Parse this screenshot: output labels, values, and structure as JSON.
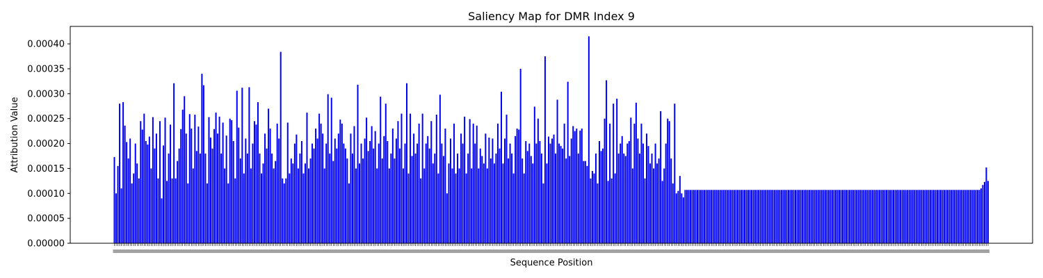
{
  "chart_data": {
    "type": "bar",
    "title": "Saliency Map for DMR Index 9",
    "xlabel": "Sequence Position",
    "ylabel": "Attribution Value",
    "ylim": [
      0,
      0.000435
    ],
    "y_ticks": [
      "0.00000",
      "0.00005",
      "0.00010",
      "0.00015",
      "0.00020",
      "0.00025",
      "0.00030",
      "0.00035",
      "0.00040"
    ],
    "bar_color": "#0000ff",
    "n_positions": 500,
    "x_tick_labels_legible": false,
    "series": [
      {
        "values_variable_region": [
          0.000173,
          0.0001,
          0.000155,
          0.00028,
          0.00011,
          0.000283,
          0.000236,
          0.000203,
          0.00017,
          0.00021,
          0.00012,
          0.00014,
          0.0002,
          0.00016,
          0.00013,
          0.000245,
          0.000228,
          0.00026,
          0.000205,
          0.000198,
          0.000214,
          0.00015,
          0.000253,
          0.00019,
          0.00022,
          0.00013,
          0.000245,
          9e-05,
          0.000196,
          0.000252,
          0.000125,
          0.00018,
          0.000238,
          0.00013,
          0.000321,
          0.00013,
          0.000165,
          0.00019,
          0.000229,
          0.000268,
          0.000295,
          0.00022,
          0.00012,
          0.000259,
          0.00023,
          0.00015,
          0.000258,
          0.000185,
          0.000234,
          0.00018,
          0.00034,
          0.000317,
          0.00018,
          0.00012,
          0.000253,
          0.000212,
          0.00019,
          0.000229,
          0.000262,
          0.00022,
          0.000254,
          0.00018,
          0.000242,
          0.00015,
          0.000216,
          0.00012,
          0.00025,
          0.000247,
          0.000205,
          0.00013,
          0.000306,
          0.000232,
          0.00017,
          0.000312,
          0.00014,
          0.00021,
          0.00018,
          0.000313,
          0.00015,
          0.0002,
          0.000245,
          0.000238,
          0.000283,
          0.00018,
          0.00014,
          0.00016,
          0.00022,
          0.00019,
          0.00027,
          0.00023,
          0.00018,
          0.00015,
          0.000165,
          0.00024,
          0.00021,
          0.000384,
          0.00013,
          0.00012,
          0.00013,
          0.000242,
          0.00014,
          0.00017,
          0.00016,
          0.0002,
          0.000218,
          0.00015,
          0.00018,
          0.000205,
          0.00014,
          0.00016,
          0.000262,
          0.00015,
          0.00017,
          0.0002,
          0.00019,
          0.00023,
          0.00021,
          0.00026,
          0.00024,
          0.00022,
          0.00015,
          0.0002,
          0.000299,
          0.00018,
          0.000292,
          0.000165,
          0.00021,
          0.00019,
          0.00022,
          0.000248,
          0.00024,
          0.0002,
          0.00019,
          0.00017,
          0.00012,
          0.00022,
          0.00018,
          0.000235,
          0.00015,
          0.000318,
          0.00016,
          0.0002,
          0.00017,
          0.00021,
          0.000252,
          0.000185,
          0.000205,
          0.000235,
          0.00019,
          0.000225,
          0.00015,
          0.0002,
          0.000294,
          0.00017,
          0.000215,
          0.00028,
          0.000205,
          0.00015,
          0.00018,
          0.00023,
          0.00017,
          0.00021,
          0.000245,
          0.00019,
          0.00026,
          0.00015,
          0.0002,
          0.000321,
          0.00014,
          0.00026,
          0.000175,
          0.00022,
          0.00018,
          0.0002,
          0.00024,
          0.00013,
          0.00026,
          0.00015,
          0.0002,
          0.000215,
          0.00019,
          0.000245,
          0.00016,
          0.00018,
          0.000258,
          0.00014,
          0.000298,
          0.0002,
          0.000175,
          0.00023,
          0.0001,
          0.00016,
          0.00021,
          0.00015,
          0.00024,
          0.00014,
          0.00018,
          0.00015,
          0.00022,
          0.0002,
          0.000254,
          0.00014,
          0.00018,
          0.000249,
          0.00015,
          0.00024,
          0.0002,
          0.000236,
          0.00015,
          0.00019,
          0.000175,
          0.00016,
          0.00022,
          0.00015,
          0.000212,
          0.00017,
          0.00021,
          0.00016,
          0.00018,
          0.00024,
          0.00019,
          0.000304,
          0.00016,
          0.00021,
          0.000258,
          0.00017,
          0.0002,
          0.00018,
          0.00014,
          0.000215,
          0.00023,
          0.000228,
          0.00035,
          0.00017,
          0.00014,
          0.000205,
          0.000185,
          0.0002,
          0.000175,
          0.00016,
          0.000274,
          0.0002,
          0.00025,
          0.000205,
          0.00018,
          0.00012,
          0.000375,
          0.00016,
          0.000214,
          0.0002,
          0.00021,
          0.000218,
          0.00018,
          0.000288,
          0.0002,
          0.000195,
          0.00019,
          0.00024,
          0.00017,
          0.000324,
          0.000175,
          0.00021,
          0.000235,
          0.000225,
          0.00023,
          0.00018,
          0.000226,
          0.00023,
          0.000165,
          0.000165,
          0.000155,
          0.000415,
          0.00013,
          0.000145,
          0.00014,
          0.00018,
          0.00012,
          0.000205,
          0.000185,
          0.00019,
          0.00025,
          0.000327,
          0.000125,
          0.00024,
          0.00013,
          0.00028,
          0.00014,
          0.00029,
          0.00018,
          0.0002,
          0.000215,
          0.00018,
          0.000175,
          0.0002,
          0.000205,
          0.000252,
          0.00015,
          0.00024,
          0.000282,
          0.00021,
          0.00018,
          0.00024,
          0.0002,
          0.00013,
          0.00022,
          0.000195,
          0.00016,
          0.00018,
          0.00015,
          0.0002,
          0.00016,
          0.00017,
          0.000265,
          0.000125,
          0.00015,
          0.0002,
          0.00025,
          0.000245,
          0.00017,
          0.00012,
          0.00028,
          0.0001,
          0.000105,
          0.000135,
          0.0001,
          9.2e-05
        ],
        "values_plateau": 0.000107,
        "values_tail": [
          0.000107,
          0.00011,
          0.000117,
          0.000123,
          0.000152,
          0.000125
        ]
      }
    ]
  }
}
